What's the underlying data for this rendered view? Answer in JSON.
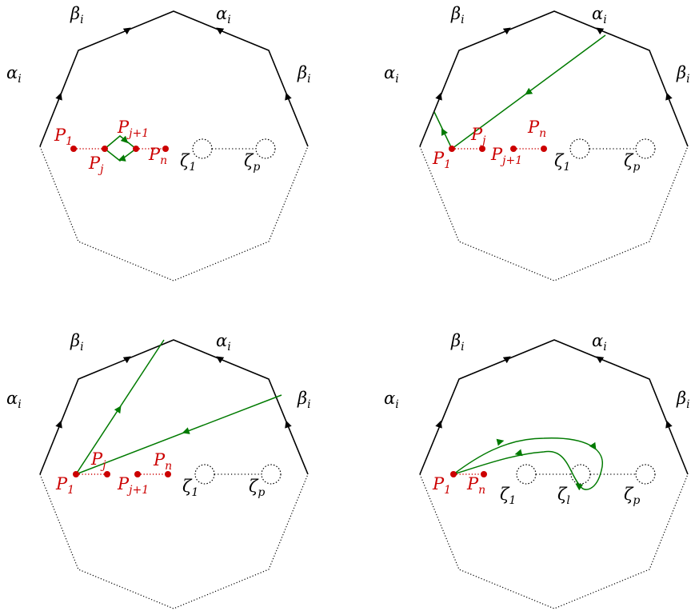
{
  "colors": {
    "edge": "#000000",
    "path": "#007a00",
    "point": "#cc0000"
  },
  "labels": {
    "alpha": "α",
    "beta": "β",
    "sub_i": "i",
    "P": "P",
    "zeta": "ζ",
    "sub_1": "1",
    "sub_j": "j",
    "sub_j1": "j+1",
    "sub_n": "n",
    "sub_p": "p",
    "sub_l": "l",
    "dots": "· · · · ·"
  }
}
